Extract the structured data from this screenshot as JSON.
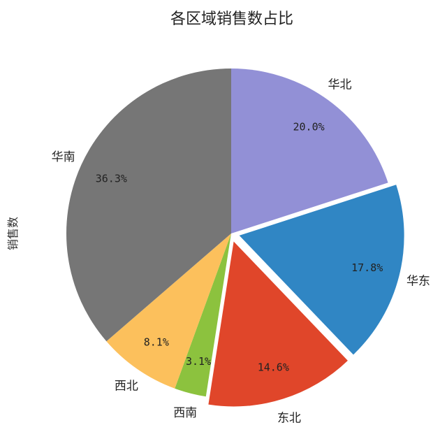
{
  "chart_data": {
    "type": "pie",
    "title": "各区域销售数占比",
    "ylabel": "销售数",
    "start_angle_deg": 90,
    "direction": "clockwise",
    "slices": [
      {
        "label": "华北",
        "value": 20.0,
        "pct_label": "20.0%",
        "color": "#9290d6",
        "explode": 0
      },
      {
        "label": "华东",
        "value": 17.8,
        "pct_label": "17.8%",
        "color": "#3086c4",
        "explode": 1
      },
      {
        "label": "东北",
        "value": 14.6,
        "pct_label": "14.6%",
        "color": "#e0462a",
        "explode": 1
      },
      {
        "label": "西南",
        "value": 3.1,
        "pct_label": "3.1%",
        "color": "#8cc23e",
        "explode": 0
      },
      {
        "label": "西北",
        "value": 8.1,
        "pct_label": "8.1%",
        "color": "#fcc05c",
        "explode": 0
      },
      {
        "label": "华南",
        "value": 36.3,
        "pct_label": "36.3%",
        "color": "#767676",
        "explode": 0
      }
    ]
  }
}
